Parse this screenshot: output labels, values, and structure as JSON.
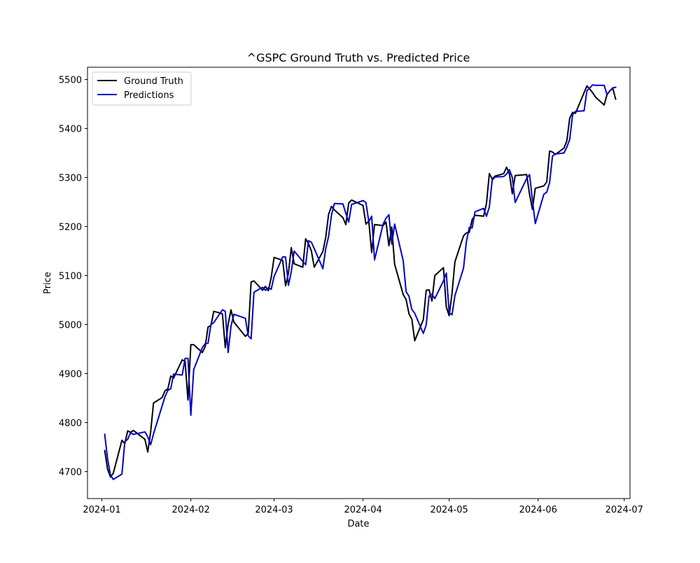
{
  "chart_data": {
    "type": "line",
    "title": "^GSPC Ground Truth vs. Predicted Price",
    "xlabel": "Date",
    "ylabel": "Price",
    "xlim": [
      "2023-12-27",
      "2024-07-03"
    ],
    "ylim": [
      4645,
      5525
    ],
    "x_ticks": [
      "2024-01",
      "2024-02",
      "2024-03",
      "2024-04",
      "2024-05",
      "2024-06",
      "2024-07"
    ],
    "y_ticks": [
      4700,
      4800,
      4900,
      5000,
      5100,
      5200,
      5300,
      5400,
      5500
    ],
    "grid": false,
    "legend_position": "upper-left",
    "series": [
      {
        "name": "Ground Truth",
        "color": "#000000",
        "points": [
          [
            "2024-01-02",
            4743
          ],
          [
            "2024-01-03",
            4705
          ],
          [
            "2024-01-04",
            4689
          ],
          [
            "2024-01-05",
            4697
          ],
          [
            "2024-01-08",
            4764
          ],
          [
            "2024-01-09",
            4757
          ],
          [
            "2024-01-10",
            4783
          ],
          [
            "2024-01-11",
            4780
          ],
          [
            "2024-01-12",
            4784
          ],
          [
            "2024-01-16",
            4766
          ],
          [
            "2024-01-17",
            4740
          ],
          [
            "2024-01-18",
            4781
          ],
          [
            "2024-01-19",
            4840
          ],
          [
            "2024-01-22",
            4851
          ],
          [
            "2024-01-23",
            4865
          ],
          [
            "2024-01-24",
            4869
          ],
          [
            "2024-01-25",
            4895
          ],
          [
            "2024-01-26",
            4891
          ],
          [
            "2024-01-29",
            4928
          ],
          [
            "2024-01-30",
            4925
          ],
          [
            "2024-01-31",
            4846
          ],
          [
            "2024-02-01",
            4959
          ],
          [
            "2024-02-02",
            4959
          ],
          [
            "2024-02-05",
            4943
          ],
          [
            "2024-02-06",
            4955
          ],
          [
            "2024-02-07",
            4995
          ],
          [
            "2024-02-08",
            4998
          ],
          [
            "2024-02-09",
            5027
          ],
          [
            "2024-02-12",
            5022
          ],
          [
            "2024-02-13",
            4953
          ],
          [
            "2024-02-14",
            5001
          ],
          [
            "2024-02-15",
            5030
          ],
          [
            "2024-02-16",
            5005
          ],
          [
            "2024-02-20",
            4976
          ],
          [
            "2024-02-21",
            4982
          ],
          [
            "2024-02-22",
            5087
          ],
          [
            "2024-02-23",
            5089
          ],
          [
            "2024-02-26",
            5070
          ],
          [
            "2024-02-27",
            5078
          ],
          [
            "2024-02-28",
            5069
          ],
          [
            "2024-02-29",
            5096
          ],
          [
            "2024-03-01",
            5137
          ],
          [
            "2024-03-04",
            5131
          ],
          [
            "2024-03-05",
            5079
          ],
          [
            "2024-03-06",
            5105
          ],
          [
            "2024-03-07",
            5157
          ],
          [
            "2024-03-08",
            5124
          ],
          [
            "2024-03-11",
            5117
          ],
          [
            "2024-03-12",
            5175
          ],
          [
            "2024-03-13",
            5165
          ],
          [
            "2024-03-14",
            5150
          ],
          [
            "2024-03-15",
            5117
          ],
          [
            "2024-03-18",
            5149
          ],
          [
            "2024-03-19",
            5178
          ],
          [
            "2024-03-20",
            5225
          ],
          [
            "2024-03-21",
            5241
          ],
          [
            "2024-03-22",
            5234
          ],
          [
            "2024-03-25",
            5218
          ],
          [
            "2024-03-26",
            5204
          ],
          [
            "2024-03-27",
            5248
          ],
          [
            "2024-03-28",
            5254
          ],
          [
            "2024-04-01",
            5243
          ],
          [
            "2024-04-02",
            5205
          ],
          [
            "2024-04-03",
            5211
          ],
          [
            "2024-04-04",
            5147
          ],
          [
            "2024-04-05",
            5204
          ],
          [
            "2024-04-08",
            5202
          ],
          [
            "2024-04-09",
            5209
          ],
          [
            "2024-04-10",
            5161
          ],
          [
            "2024-04-11",
            5199
          ],
          [
            "2024-04-12",
            5123
          ],
          [
            "2024-04-15",
            5061
          ],
          [
            "2024-04-16",
            5051
          ],
          [
            "2024-04-17",
            5022
          ],
          [
            "2024-04-18",
            5011
          ],
          [
            "2024-04-19",
            4967
          ],
          [
            "2024-04-22",
            5010
          ],
          [
            "2024-04-23",
            5070
          ],
          [
            "2024-04-24",
            5071
          ],
          [
            "2024-04-25",
            5048
          ],
          [
            "2024-04-26",
            5100
          ],
          [
            "2024-04-29",
            5116
          ],
          [
            "2024-04-30",
            5036
          ],
          [
            "2024-05-01",
            5018
          ],
          [
            "2024-05-02",
            5064
          ],
          [
            "2024-05-03",
            5128
          ],
          [
            "2024-05-06",
            5181
          ],
          [
            "2024-05-07",
            5187
          ],
          [
            "2024-05-08",
            5188
          ],
          [
            "2024-05-09",
            5214
          ],
          [
            "2024-05-10",
            5223
          ],
          [
            "2024-05-13",
            5221
          ],
          [
            "2024-05-14",
            5247
          ],
          [
            "2024-05-15",
            5308
          ],
          [
            "2024-05-16",
            5297
          ],
          [
            "2024-05-17",
            5303
          ],
          [
            "2024-05-20",
            5308
          ],
          [
            "2024-05-21",
            5321
          ],
          [
            "2024-05-22",
            5307
          ],
          [
            "2024-05-23",
            5267
          ],
          [
            "2024-05-24",
            5304
          ],
          [
            "2024-05-28",
            5306
          ],
          [
            "2024-05-29",
            5266
          ],
          [
            "2024-05-30",
            5235
          ],
          [
            "2024-05-31",
            5278
          ],
          [
            "2024-06-03",
            5283
          ],
          [
            "2024-06-04",
            5291
          ],
          [
            "2024-06-05",
            5354
          ],
          [
            "2024-06-06",
            5352
          ],
          [
            "2024-06-07",
            5347
          ],
          [
            "2024-06-10",
            5360
          ],
          [
            "2024-06-11",
            5375
          ],
          [
            "2024-06-12",
            5421
          ],
          [
            "2024-06-13",
            5433
          ],
          [
            "2024-06-14",
            5431
          ],
          [
            "2024-06-17",
            5473
          ],
          [
            "2024-06-18",
            5487
          ],
          [
            "2024-06-20",
            5473
          ],
          [
            "2024-06-21",
            5464
          ],
          [
            "2024-06-24",
            5448
          ],
          [
            "2024-06-25",
            5469
          ],
          [
            "2024-06-26",
            5477
          ],
          [
            "2024-06-27",
            5482
          ],
          [
            "2024-06-28",
            5460
          ]
        ]
      },
      {
        "name": "Predictions",
        "color": "#0000cc",
        "points": [
          [
            "2024-01-02",
            4776
          ],
          [
            "2024-01-03",
            4726
          ],
          [
            "2024-01-04",
            4693
          ],
          [
            "2024-01-05",
            4684
          ],
          [
            "2024-01-08",
            4695
          ],
          [
            "2024-01-09",
            4761
          ],
          [
            "2024-01-10",
            4766
          ],
          [
            "2024-01-11",
            4779
          ],
          [
            "2024-01-12",
            4776
          ],
          [
            "2024-01-16",
            4781
          ],
          [
            "2024-01-17",
            4771
          ],
          [
            "2024-01-18",
            4755
          ],
          [
            "2024-01-19",
            4777
          ],
          [
            "2024-01-22",
            4834
          ],
          [
            "2024-01-23",
            4853
          ],
          [
            "2024-01-24",
            4866
          ],
          [
            "2024-01-25",
            4869
          ],
          [
            "2024-01-26",
            4899
          ],
          [
            "2024-01-29",
            4897
          ],
          [
            "2024-01-30",
            4931
          ],
          [
            "2024-01-31",
            4931
          ],
          [
            "2024-02-01",
            4815
          ],
          [
            "2024-02-02",
            4908
          ],
          [
            "2024-02-05",
            4953
          ],
          [
            "2024-02-06",
            4961
          ],
          [
            "2024-02-07",
            4962
          ],
          [
            "2024-02-08",
            5000
          ],
          [
            "2024-02-09",
            5004
          ],
          [
            "2024-02-12",
            5030
          ],
          [
            "2024-02-13",
            5027
          ],
          [
            "2024-02-14",
            4943
          ],
          [
            "2024-02-15",
            4997
          ],
          [
            "2024-02-16",
            5021
          ],
          [
            "2024-02-20",
            5013
          ],
          [
            "2024-02-21",
            4977
          ],
          [
            "2024-02-22",
            4971
          ],
          [
            "2024-02-23",
            5066
          ],
          [
            "2024-02-26",
            5076
          ],
          [
            "2024-02-27",
            5070
          ],
          [
            "2024-02-28",
            5075
          ],
          [
            "2024-02-29",
            5072
          ],
          [
            "2024-03-01",
            5098
          ],
          [
            "2024-03-04",
            5138
          ],
          [
            "2024-03-05",
            5138
          ],
          [
            "2024-03-06",
            5080
          ],
          [
            "2024-03-07",
            5108
          ],
          [
            "2024-03-08",
            5150
          ],
          [
            "2024-03-11",
            5129
          ],
          [
            "2024-03-12",
            5122
          ],
          [
            "2024-03-13",
            5171
          ],
          [
            "2024-03-14",
            5168
          ],
          [
            "2024-03-15",
            5155
          ],
          [
            "2024-03-18",
            5114
          ],
          [
            "2024-03-19",
            5155
          ],
          [
            "2024-03-20",
            5180
          ],
          [
            "2024-03-21",
            5223
          ],
          [
            "2024-03-22",
            5247
          ],
          [
            "2024-03-25",
            5246
          ],
          [
            "2024-03-26",
            5227
          ],
          [
            "2024-03-27",
            5209
          ],
          [
            "2024-03-28",
            5245
          ],
          [
            "2024-04-01",
            5253
          ],
          [
            "2024-04-02",
            5249
          ],
          [
            "2024-04-03",
            5210
          ],
          [
            "2024-04-04",
            5221
          ],
          [
            "2024-04-05",
            5132
          ],
          [
            "2024-04-08",
            5205
          ],
          [
            "2024-04-09",
            5217
          ],
          [
            "2024-04-10",
            5224
          ],
          [
            "2024-04-11",
            5164
          ],
          [
            "2024-04-12",
            5205
          ],
          [
            "2024-04-15",
            5130
          ],
          [
            "2024-04-16",
            5067
          ],
          [
            "2024-04-17",
            5058
          ],
          [
            "2024-04-18",
            5031
          ],
          [
            "2024-04-19",
            5023
          ],
          [
            "2024-04-22",
            4982
          ],
          [
            "2024-04-23",
            4999
          ],
          [
            "2024-04-24",
            5058
          ],
          [
            "2024-04-25",
            5062
          ],
          [
            "2024-04-26",
            5053
          ],
          [
            "2024-04-29",
            5089
          ],
          [
            "2024-04-30",
            5105
          ],
          [
            "2024-05-01",
            5024
          ],
          [
            "2024-05-02",
            5020
          ],
          [
            "2024-05-03",
            5059
          ],
          [
            "2024-05-06",
            5115
          ],
          [
            "2024-05-07",
            5169
          ],
          [
            "2024-05-08",
            5198
          ],
          [
            "2024-05-09",
            5197
          ],
          [
            "2024-05-10",
            5230
          ],
          [
            "2024-05-13",
            5237
          ],
          [
            "2024-05-14",
            5221
          ],
          [
            "2024-05-15",
            5240
          ],
          [
            "2024-05-16",
            5295
          ],
          [
            "2024-05-17",
            5301
          ],
          [
            "2024-05-20",
            5302
          ],
          [
            "2024-05-21",
            5307
          ],
          [
            "2024-05-22",
            5316
          ],
          [
            "2024-05-23",
            5300
          ],
          [
            "2024-05-24",
            5249
          ],
          [
            "2024-05-28",
            5298
          ],
          [
            "2024-05-29",
            5306
          ],
          [
            "2024-05-30",
            5255
          ],
          [
            "2024-05-31",
            5206
          ],
          [
            "2024-06-03",
            5266
          ],
          [
            "2024-06-04",
            5270
          ],
          [
            "2024-06-05",
            5290
          ],
          [
            "2024-06-06",
            5344
          ],
          [
            "2024-06-07",
            5348
          ],
          [
            "2024-06-10",
            5350
          ],
          [
            "2024-06-11",
            5362
          ],
          [
            "2024-06-12",
            5378
          ],
          [
            "2024-06-13",
            5428
          ],
          [
            "2024-06-14",
            5435
          ],
          [
            "2024-06-17",
            5436
          ],
          [
            "2024-06-18",
            5477
          ],
          [
            "2024-06-20",
            5489
          ],
          [
            "2024-06-21",
            5488
          ],
          [
            "2024-06-24",
            5488
          ],
          [
            "2024-06-25",
            5469
          ],
          [
            "2024-06-26",
            5477
          ],
          [
            "2024-06-27",
            5483
          ],
          [
            "2024-06-28",
            5484
          ]
        ]
      }
    ]
  }
}
